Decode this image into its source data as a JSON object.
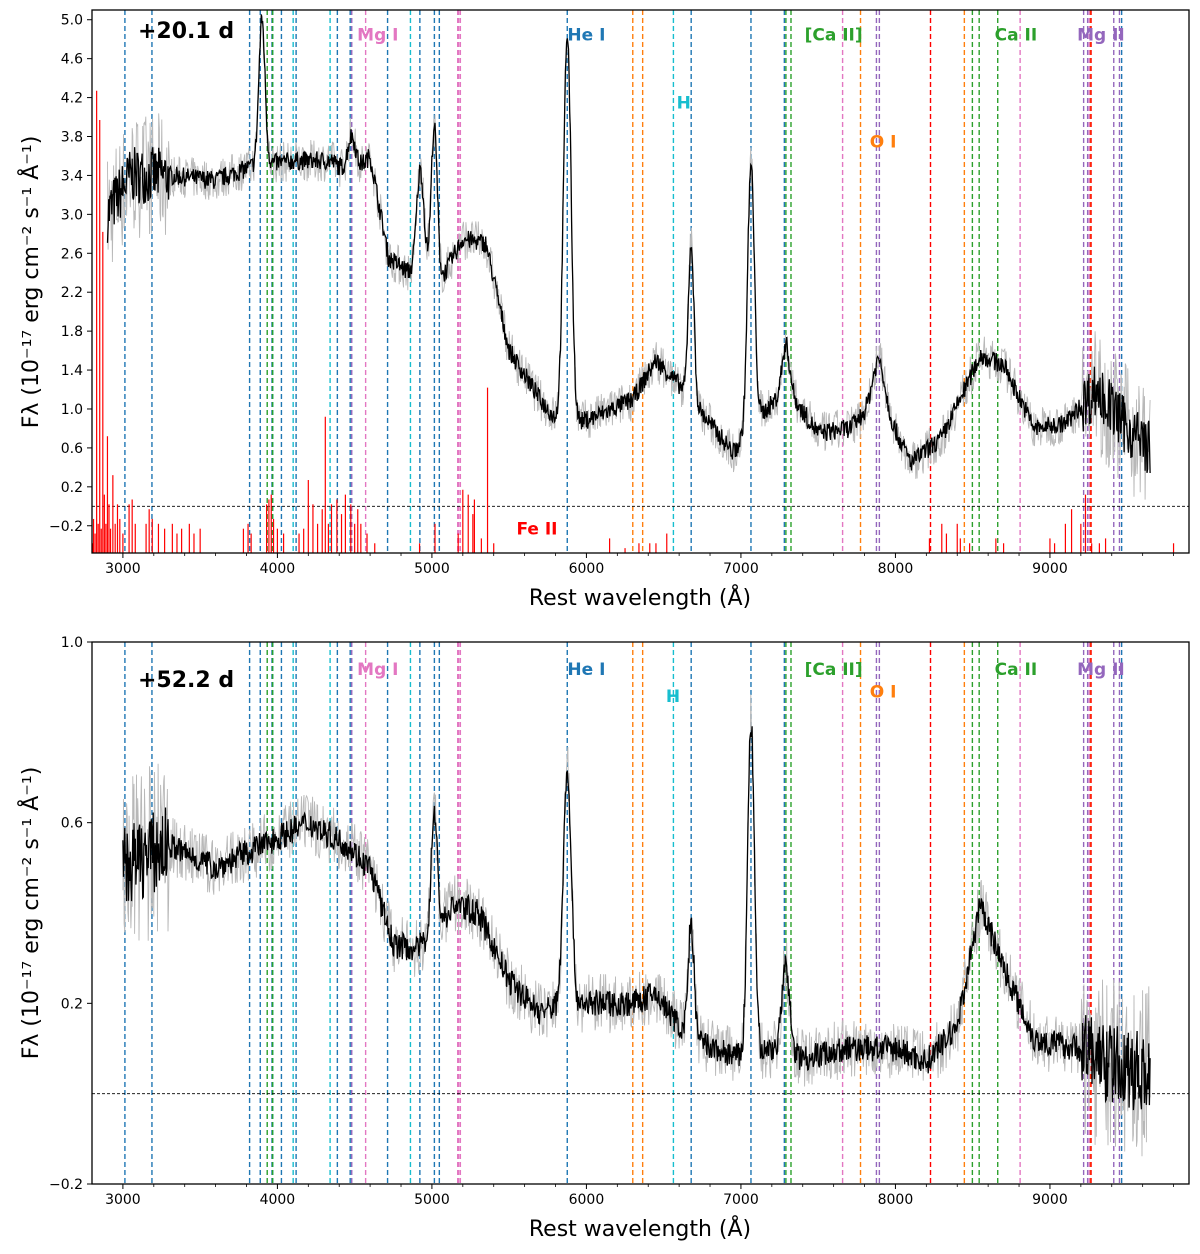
{
  "chart_data": [
    {
      "type": "line",
      "epoch_label": "+20.1 d",
      "xlabel": "Rest wavelength (Å)",
      "ylabel": "Fλ (10⁻¹⁷ erg cm⁻² s⁻¹ Å⁻¹)",
      "xlim": [
        2800,
        9900
      ],
      "ylim": [
        -0.48,
        5.1
      ],
      "xticks": [
        3000,
        4000,
        5000,
        6000,
        7000,
        8000,
        9000
      ],
      "xtick_labels": [
        "3000",
        "4000",
        "5000",
        "6000",
        "7000",
        "8000",
        "9000"
      ],
      "yticks": [
        -0.2,
        0.2,
        0.6,
        1.0,
        1.4,
        1.8,
        2.2,
        2.6,
        3.0,
        3.4,
        3.8,
        4.2,
        4.6,
        5.0
      ],
      "ytick_labels": [
        "−0.2",
        "0.2",
        "0.6",
        "1.0",
        "1.4",
        "1.8",
        "2.2",
        "2.6",
        "3.0",
        "3.4",
        "3.8",
        "4.2",
        "4.6",
        "5.0"
      ],
      "zero_line": 0.0,
      "continuum": [
        [
          2900,
          3.0
        ],
        [
          3050,
          3.4
        ],
        [
          3300,
          3.4
        ],
        [
          3600,
          3.35
        ],
        [
          3850,
          3.5
        ],
        [
          4100,
          3.55
        ],
        [
          4350,
          3.55
        ],
        [
          4480,
          3.4
        ],
        [
          4600,
          3.6
        ],
        [
          4720,
          2.55
        ],
        [
          4900,
          2.35
        ],
        [
          5050,
          2.3
        ],
        [
          5200,
          2.75
        ],
        [
          5350,
          2.7
        ],
        [
          5500,
          1.6
        ],
        [
          5700,
          1.1
        ],
        [
          5850,
          0.8
        ],
        [
          6100,
          0.95
        ],
        [
          6300,
          1.1
        ],
        [
          6450,
          1.5
        ],
        [
          6600,
          1.25
        ],
        [
          6800,
          0.85
        ],
        [
          6950,
          0.55
        ],
        [
          7100,
          0.9
        ],
        [
          7300,
          1.2
        ],
        [
          7500,
          0.75
        ],
        [
          7700,
          0.8
        ],
        [
          7900,
          1.1
        ],
        [
          8100,
          0.45
        ],
        [
          8300,
          0.7
        ],
        [
          8550,
          1.55
        ],
        [
          8700,
          1.45
        ],
        [
          8900,
          0.8
        ],
        [
          9100,
          0.85
        ],
        [
          9300,
          1.2
        ],
        [
          9500,
          0.8
        ],
        [
          9650,
          0.6
        ]
      ],
      "emission_peaks": [
        [
          3900,
          5.0,
          20
        ],
        [
          4480,
          3.8,
          25
        ],
        [
          4925,
          3.45,
          25
        ],
        [
          5015,
          3.9,
          20
        ],
        [
          5876,
          4.85,
          25
        ],
        [
          6678,
          2.7,
          18
        ],
        [
          7065,
          3.5,
          22
        ],
        [
          7290,
          1.65,
          25
        ],
        [
          7890,
          1.5,
          40
        ]
      ],
      "fe_ii_lines": [
        [
          2805,
          0.1
        ],
        [
          2810,
          0.35
        ],
        [
          2820,
          0.2
        ],
        [
          2830,
          4.75
        ],
        [
          2840,
          0.3
        ],
        [
          2850,
          4.45
        ],
        [
          2860,
          0.25
        ],
        [
          2870,
          3.3
        ],
        [
          2880,
          0.6
        ],
        [
          2890,
          0.3
        ],
        [
          2900,
          1.2
        ],
        [
          2910,
          0.5
        ],
        [
          2920,
          0.25
        ],
        [
          2935,
          0.8
        ],
        [
          2950,
          0.3
        ],
        [
          2965,
          0.5
        ],
        [
          2980,
          0.35
        ],
        [
          3000,
          0.2
        ],
        [
          3040,
          0.5
        ],
        [
          3060,
          0.55
        ],
        [
          3080,
          0.3
        ],
        [
          3150,
          0.3
        ],
        [
          3170,
          0.45
        ],
        [
          3190,
          0.35
        ],
        [
          3230,
          0.3
        ],
        [
          3270,
          0.25
        ],
        [
          3320,
          0.3
        ],
        [
          3350,
          0.2
        ],
        [
          3380,
          0.25
        ],
        [
          3430,
          0.3
        ],
        [
          3460,
          0.2
        ],
        [
          3500,
          0.25
        ],
        [
          3780,
          0.25
        ],
        [
          3810,
          0.3
        ],
        [
          3830,
          0.2
        ],
        [
          3930,
          0.5
        ],
        [
          3945,
          0.55
        ],
        [
          3960,
          0.6
        ],
        [
          3975,
          0.35
        ],
        [
          4000,
          0.25
        ],
        [
          4040,
          0.2
        ],
        [
          4140,
          0.2
        ],
        [
          4170,
          0.25
        ],
        [
          4200,
          0.75
        ],
        [
          4230,
          0.5
        ],
        [
          4260,
          0.3
        ],
        [
          4290,
          0.45
        ],
        [
          4310,
          1.4
        ],
        [
          4330,
          0.3
        ],
        [
          4350,
          0.5
        ],
        [
          4385,
          0.55
        ],
        [
          4415,
          0.4
        ],
        [
          4440,
          0.6
        ],
        [
          4475,
          0.5
        ],
        [
          4500,
          0.3
        ],
        [
          4520,
          0.45
        ],
        [
          4540,
          0.3
        ],
        [
          4580,
          0.2
        ],
        [
          4630,
          0.1
        ],
        [
          4920,
          0.1
        ],
        [
          5020,
          0.3
        ],
        [
          5170,
          0.2
        ],
        [
          5200,
          0.65
        ],
        [
          5235,
          0.6
        ],
        [
          5265,
          0.4
        ],
        [
          5275,
          0.55
        ],
        [
          5320,
          0.15
        ],
        [
          5360,
          1.7
        ],
        [
          5400,
          0.1
        ],
        [
          6150,
          0.15
        ],
        [
          6250,
          0.05
        ],
        [
          6340,
          0.1
        ],
        [
          6410,
          0.1
        ],
        [
          6450,
          0.1
        ],
        [
          6520,
          0.2
        ],
        [
          8220,
          0.15
        ],
        [
          8300,
          0.3
        ],
        [
          8330,
          0.2
        ],
        [
          8400,
          0.3
        ],
        [
          8420,
          0.15
        ],
        [
          8480,
          0.1
        ],
        [
          8650,
          0.15
        ],
        [
          8700,
          0.1
        ],
        [
          9000,
          0.15
        ],
        [
          9030,
          0.1
        ],
        [
          9100,
          0.3
        ],
        [
          9140,
          0.45
        ],
        [
          9200,
          0.3
        ],
        [
          9230,
          0.6
        ],
        [
          9270,
          0.1
        ],
        [
          9320,
          0.1
        ],
        [
          9360,
          0.15
        ],
        [
          9800,
          0.1
        ]
      ],
      "species_labels": [
        {
          "text": "Mg I",
          "x": 4650,
          "y": 4.85,
          "color": "#e377c2"
        },
        {
          "text": "He I",
          "x": 6000,
          "y": 4.85,
          "color": "#1f77b4"
        },
        {
          "text": "H",
          "x": 6630,
          "y": 4.15,
          "color": "#17becf"
        },
        {
          "text": "O I",
          "x": 7920,
          "y": 3.75,
          "color": "#ff7f0e"
        },
        {
          "text": "[Ca II]",
          "x": 7600,
          "y": 4.85,
          "color": "#2ca02c"
        },
        {
          "text": "Ca II",
          "x": 8780,
          "y": 4.85,
          "color": "#2ca02c"
        },
        {
          "text": "Mg II",
          "x": 9330,
          "y": 4.85,
          "color": "#9467bd"
        },
        {
          "text": "Fe II",
          "x": 5680,
          "y": -0.23,
          "color": "#ff0000"
        }
      ]
    },
    {
      "type": "line",
      "epoch_label": "+52.2 d",
      "xlabel": "Rest wavelength (Å)",
      "ylabel": "Fλ (10⁻¹⁷ erg cm⁻² s⁻¹ Å⁻¹)",
      "xlim": [
        2800,
        9900
      ],
      "ylim": [
        -0.2,
        1.0
      ],
      "yticks": [
        -0.2,
        0.2,
        0.6,
        1.0
      ],
      "ytick_labels": [
        "−0.2",
        "0.2",
        "0.6",
        "1.0"
      ],
      "zero_line": 0.0,
      "continuum": [
        [
          3000,
          0.5
        ],
        [
          3300,
          0.55
        ],
        [
          3600,
          0.5
        ],
        [
          3900,
          0.55
        ],
        [
          4200,
          0.6
        ],
        [
          4450,
          0.55
        ],
        [
          4600,
          0.5
        ],
        [
          4750,
          0.33
        ],
        [
          4900,
          0.32
        ],
        [
          5000,
          0.35
        ],
        [
          5150,
          0.42
        ],
        [
          5300,
          0.4
        ],
        [
          5500,
          0.25
        ],
        [
          5700,
          0.18
        ],
        [
          5850,
          0.2
        ],
        [
          6100,
          0.2
        ],
        [
          6300,
          0.2
        ],
        [
          6450,
          0.22
        ],
        [
          6600,
          0.15
        ],
        [
          6800,
          0.1
        ],
        [
          7000,
          0.08
        ],
        [
          7200,
          0.1
        ],
        [
          7400,
          0.08
        ],
        [
          7700,
          0.1
        ],
        [
          8000,
          0.1
        ],
        [
          8200,
          0.07
        ],
        [
          8400,
          0.15
        ],
        [
          8550,
          0.42
        ],
        [
          8700,
          0.28
        ],
        [
          8900,
          0.12
        ],
        [
          9200,
          0.1
        ],
        [
          9500,
          0.05
        ],
        [
          9650,
          0.05
        ]
      ],
      "emission_peaks": [
        [
          5015,
          0.62,
          20
        ],
        [
          5876,
          0.72,
          25
        ],
        [
          6678,
          0.38,
          18
        ],
        [
          7065,
          0.82,
          22
        ],
        [
          7290,
          0.28,
          25
        ]
      ],
      "species_labels": [
        {
          "text": "Mg I",
          "x": 4650,
          "y": 0.94,
          "color": "#e377c2"
        },
        {
          "text": "He I",
          "x": 6000,
          "y": 0.94,
          "color": "#1f77b4"
        },
        {
          "text": "H",
          "x": 6560,
          "y": 0.88,
          "color": "#17becf"
        },
        {
          "text": "O I",
          "x": 7920,
          "y": 0.89,
          "color": "#ff7f0e"
        },
        {
          "text": "[Ca II]",
          "x": 7600,
          "y": 0.94,
          "color": "#2ca02c"
        },
        {
          "text": "Ca II",
          "x": 8780,
          "y": 0.94,
          "color": "#2ca02c"
        },
        {
          "text": "Mg II",
          "x": 9330,
          "y": 0.94,
          "color": "#9467bd"
        }
      ]
    }
  ],
  "line_sets": {
    "He I": {
      "color": "#1f77b4",
      "wavelengths": [
        3013,
        3188,
        3820,
        3889,
        3965,
        4026,
        4121,
        4388,
        4471,
        4713,
        4922,
        5016,
        5048,
        5876,
        6678,
        7065,
        7281,
        9464
      ]
    },
    "H": {
      "color": "#17becf",
      "wavelengths": [
        3970,
        4102,
        4341,
        4861,
        6563
      ]
    },
    "Ca II": {
      "color": "#2ca02c",
      "wavelengths": [
        3934,
        3969,
        7291,
        7324,
        8498,
        8542,
        8662
      ]
    },
    "Mg I": {
      "color": "#e377c2",
      "wavelengths": [
        4571,
        5167,
        5173,
        5184,
        7658,
        8807,
        9255
      ]
    },
    "Mg II": {
      "color": "#9467bd",
      "wavelengths": [
        4481,
        7877,
        7896,
        9218,
        9244,
        9413,
        9450
      ]
    },
    "O I": {
      "color": "#ff7f0e",
      "wavelengths": [
        6300,
        6364,
        7774,
        8446,
        9263
      ]
    },
    "red": {
      "color": "#ff0000",
      "wavelengths": [
        8227,
        9266
      ]
    }
  }
}
